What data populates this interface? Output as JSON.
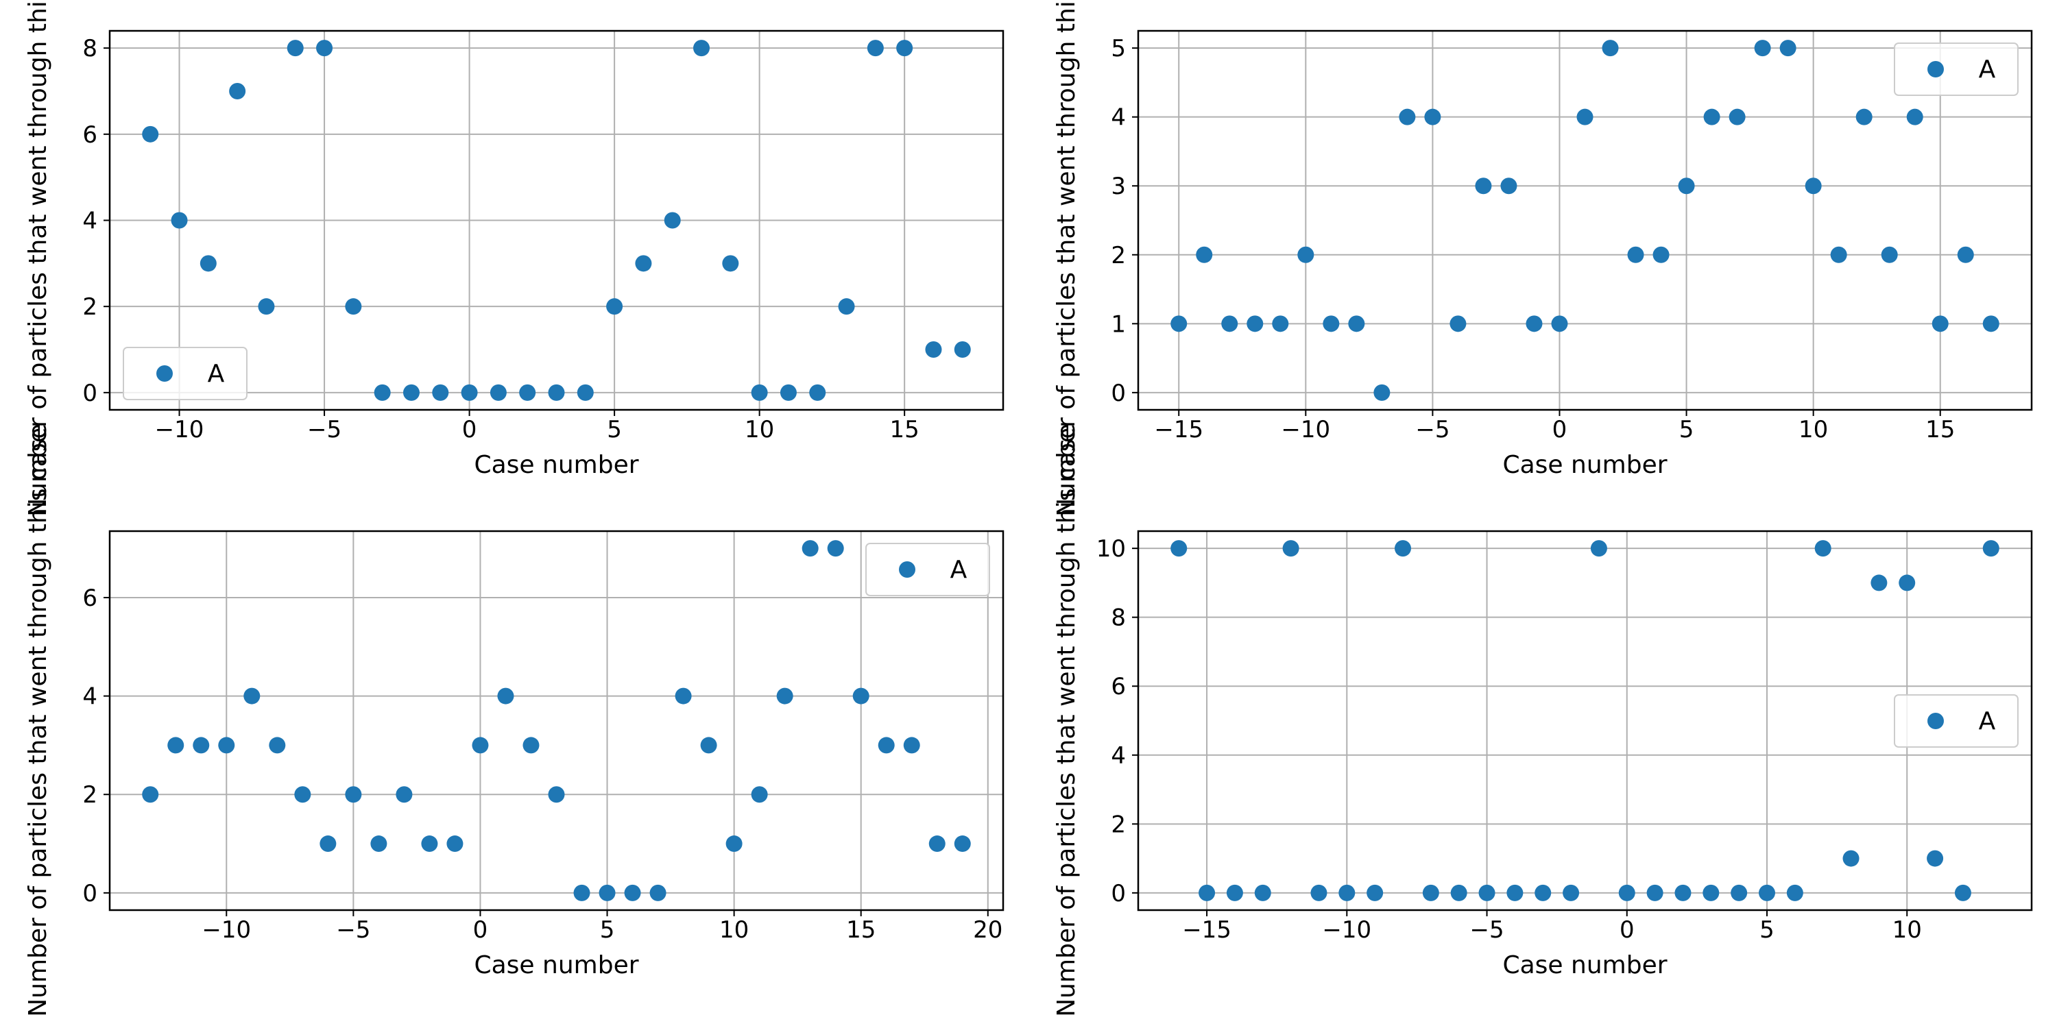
{
  "chart_data": [
    {
      "type": "scatter",
      "xlabel": "Case number",
      "ylabel": "Number of particles that went through this case",
      "xticks": [
        -10,
        -5,
        0,
        5,
        10,
        15
      ],
      "xtick_labels": [
        "−10",
        "−5",
        "0",
        "5",
        "10",
        "15"
      ],
      "yticks": [
        0,
        2,
        4,
        6,
        8
      ],
      "ytick_labels": [
        "0",
        "2",
        "4",
        "6",
        "8"
      ],
      "xlim": [
        -12.4,
        18.4
      ],
      "ylim": [
        -0.4,
        8.4
      ],
      "grid": true,
      "legend": "lower-left",
      "series": [
        {
          "name": "A",
          "color": "#1f77b4",
          "x": [
            -11,
            -10,
            -9,
            -8,
            -7,
            -6,
            -5,
            -4,
            -3,
            -2,
            -1,
            0,
            1,
            2,
            3,
            4,
            5,
            6,
            7,
            8,
            9,
            10,
            11,
            12,
            13,
            14,
            15,
            16,
            17
          ],
          "y": [
            6,
            4,
            3,
            7,
            2,
            8,
            8,
            2,
            0,
            0,
            0,
            0,
            0,
            0,
            0,
            0,
            2,
            3,
            4,
            8,
            3,
            0,
            0,
            0,
            2,
            8,
            8,
            1,
            1
          ]
        }
      ]
    },
    {
      "type": "scatter",
      "xlabel": "Case number",
      "ylabel": "Number of particles that went through this case",
      "xticks": [
        -15,
        -10,
        -5,
        0,
        5,
        10,
        15
      ],
      "xtick_labels": [
        "−15",
        "−10",
        "−5",
        "0",
        "5",
        "10",
        "15"
      ],
      "yticks": [
        0,
        1,
        2,
        3,
        4,
        5
      ],
      "ytick_labels": [
        "0",
        "1",
        "2",
        "3",
        "4",
        "5"
      ],
      "xlim": [
        -16.6,
        18.6
      ],
      "ylim": [
        -0.25,
        5.25
      ],
      "grid": true,
      "legend": "top-right",
      "series": [
        {
          "name": "A",
          "color": "#1f77b4",
          "x": [
            -15,
            -14,
            -13,
            -12,
            -11,
            -10,
            -9,
            -8,
            -7,
            -6,
            -5,
            -4,
            -3,
            -2,
            -1,
            0,
            1,
            2,
            3,
            4,
            5,
            6,
            7,
            8,
            9,
            10,
            11,
            12,
            13,
            14,
            15,
            16,
            17
          ],
          "y": [
            1,
            2,
            1,
            1,
            1,
            2,
            1,
            1,
            0,
            4,
            4,
            1,
            3,
            3,
            1,
            1,
            4,
            5,
            2,
            2,
            3,
            4,
            4,
            5,
            5,
            3,
            2,
            4,
            2,
            4,
            1,
            2,
            1
          ]
        }
      ]
    },
    {
      "type": "scatter",
      "xlabel": "Case number",
      "ylabel": "Number of particles that went through this case",
      "xticks": [
        -10,
        -5,
        0,
        5,
        10,
        15,
        20
      ],
      "xtick_labels": [
        "−10",
        "−5",
        "0",
        "5",
        "10",
        "15",
        "20"
      ],
      "yticks": [
        0,
        2,
        4,
        6
      ],
      "ytick_labels": [
        "0",
        "2",
        "4",
        "6"
      ],
      "xlim": [
        -14.6,
        20.6
      ],
      "ylim": [
        -0.35,
        7.35
      ],
      "grid": true,
      "legend": "top-right",
      "series": [
        {
          "name": "A",
          "color": "#1f77b4",
          "x": [
            -13,
            -12,
            -11,
            -10,
            -9,
            -8,
            -7,
            -6,
            -5,
            -4,
            -3,
            -2,
            -1,
            0,
            1,
            2,
            3,
            4,
            5,
            6,
            7,
            8,
            9,
            10,
            11,
            12,
            13,
            14,
            15,
            16,
            17,
            18,
            19
          ],
          "y": [
            2,
            3,
            3,
            3,
            4,
            3,
            2,
            1,
            2,
            1,
            2,
            1,
            1,
            3,
            4,
            3,
            2,
            0,
            0,
            0,
            0,
            4,
            3,
            1,
            2,
            4,
            7,
            7,
            4,
            3,
            3,
            1,
            1
          ]
        }
      ]
    },
    {
      "type": "scatter",
      "xlabel": "Case number",
      "ylabel": "Number of particles that went through this case",
      "xticks": [
        -15,
        -10,
        -5,
        0,
        5,
        10
      ],
      "xtick_labels": [
        "−15",
        "−10",
        "−5",
        "0",
        "5",
        "10"
      ],
      "yticks": [
        0,
        2,
        4,
        6,
        8,
        10
      ],
      "ytick_labels": [
        "0",
        "2",
        "4",
        "6",
        "8",
        "10"
      ],
      "xlim": [
        -17.45,
        14.45
      ],
      "ylim": [
        -0.5,
        10.5
      ],
      "grid": true,
      "legend": "center-right",
      "series": [
        {
          "name": "A",
          "color": "#1f77b4",
          "x": [
            -16,
            -15,
            -14,
            -13,
            -12,
            -11,
            -10,
            -9,
            -8,
            -7,
            -6,
            -5,
            -4,
            -3,
            -2,
            -1,
            0,
            1,
            2,
            3,
            4,
            5,
            6,
            7,
            8,
            9,
            10,
            11,
            12,
            13
          ],
          "y": [
            10,
            0,
            0,
            0,
            10,
            0,
            0,
            0,
            10,
            0,
            0,
            0,
            0,
            0,
            0,
            10,
            0,
            0,
            0,
            0,
            0,
            0,
            0,
            10,
            1,
            9,
            9,
            1,
            0,
            10
          ]
        }
      ]
    }
  ]
}
